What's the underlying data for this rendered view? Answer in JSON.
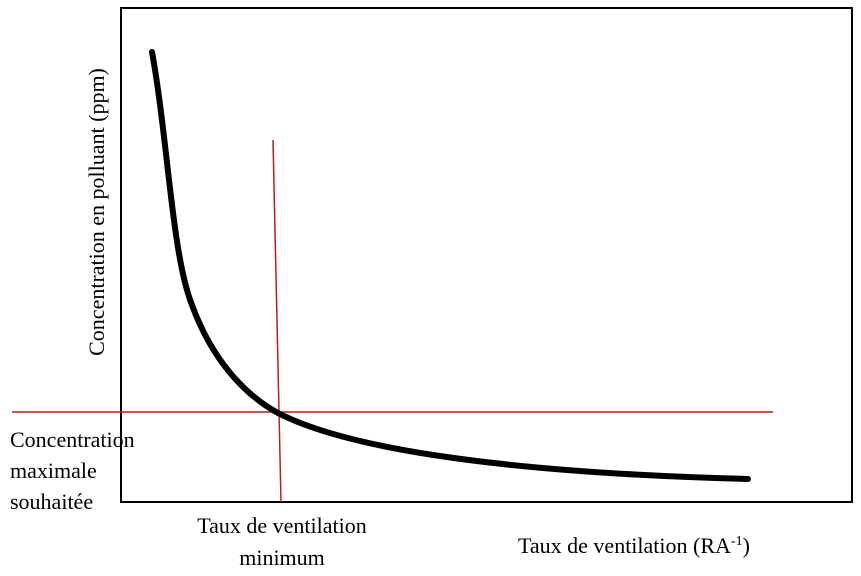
{
  "axes": {
    "y_label": "Concentration en polluant (ppm)",
    "x_label": {
      "text": "Taux de ventilation (RA",
      "superscript": "-1",
      "end": ")"
    }
  },
  "annotations": {
    "max_concentration": [
      "Concentration",
      "maximale",
      "souhaitée"
    ],
    "min_ventilation": [
      "Taux de ventilation",
      "minimum"
    ]
  }
}
